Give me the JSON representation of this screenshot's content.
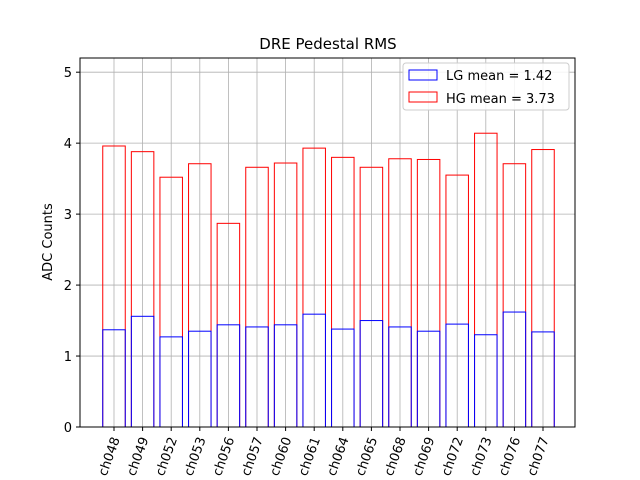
{
  "chart_data": {
    "type": "bar",
    "title": "DRE Pedestal RMS",
    "xlabel": "",
    "ylabel": "ADC Counts",
    "ylim": [
      0,
      5.2
    ],
    "yticks": [
      "0",
      "1",
      "2",
      "3",
      "4",
      "5"
    ],
    "grid": true,
    "legend_position": "top-right",
    "categories": [
      "ch048",
      "ch049",
      "ch052",
      "ch053",
      "ch056",
      "ch057",
      "ch060",
      "ch061",
      "ch064",
      "ch065",
      "ch068",
      "ch069",
      "ch072",
      "ch073",
      "ch076",
      "ch077"
    ],
    "series": [
      {
        "name": "HG",
        "legend_label": "HG mean = 3.73",
        "color": "#ff0000",
        "values": [
          3.96,
          3.88,
          3.52,
          3.71,
          2.87,
          3.66,
          3.72,
          3.93,
          3.8,
          3.66,
          3.78,
          3.77,
          3.55,
          4.14,
          3.71,
          3.91
        ]
      },
      {
        "name": "LG",
        "legend_label": "LG mean = 1.42",
        "color": "#0000ff",
        "values": [
          1.37,
          1.56,
          1.27,
          1.35,
          1.44,
          1.41,
          1.44,
          1.59,
          1.38,
          1.5,
          1.41,
          1.35,
          1.45,
          1.3,
          1.62,
          1.34
        ]
      }
    ]
  }
}
